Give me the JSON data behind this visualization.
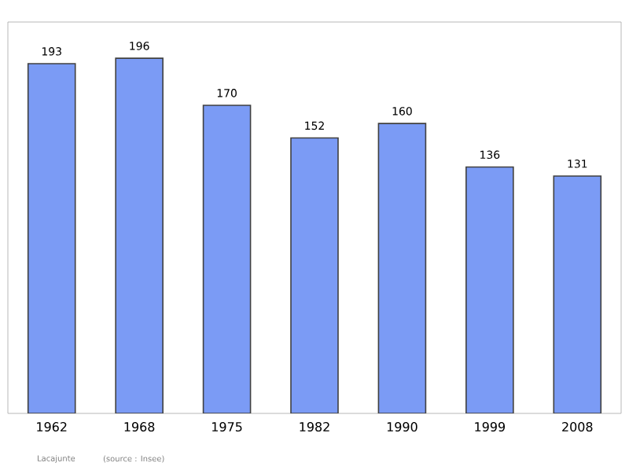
{
  "chart_data": {
    "type": "bar",
    "categories": [
      "1962",
      "1968",
      "1975",
      "1982",
      "1990",
      "1999",
      "2008"
    ],
    "values": [
      193,
      196,
      170,
      152,
      160,
      136,
      131
    ],
    "color": "#7b9bf5",
    "ylim": [
      0,
      216
    ],
    "data_labels": true,
    "annotations": [
      "Lacajunte",
      "(source : Insee)"
    ]
  }
}
